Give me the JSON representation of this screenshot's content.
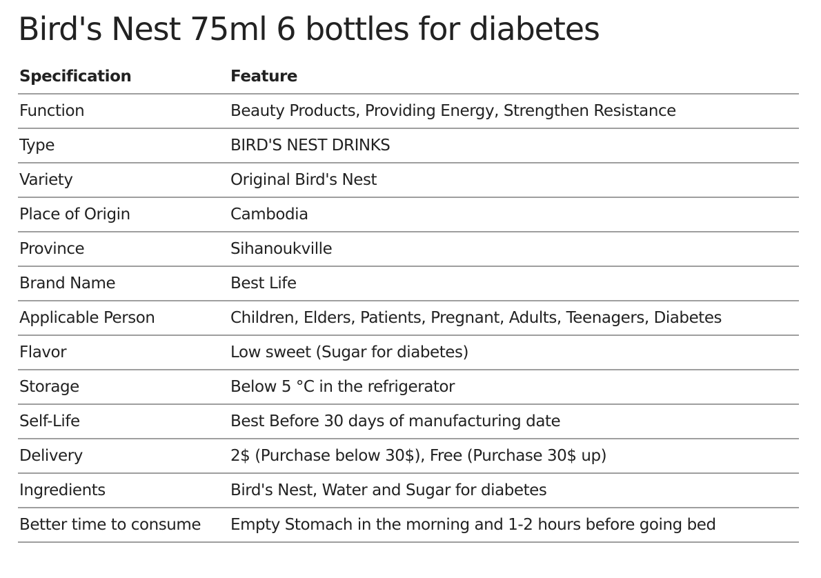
{
  "page": {
    "title": "Bird's Nest 75ml 6 bottles for diabetes"
  },
  "table": {
    "headers": [
      "Specification",
      "Feature"
    ],
    "rows": [
      [
        "Function",
        "Beauty Products, Providing Energy, Strengthen Resistance"
      ],
      [
        "Type",
        "BIRD'S NEST DRINKS"
      ],
      [
        "Variety",
        "Original Bird's Nest"
      ],
      [
        "Place of Origin",
        "Cambodia"
      ],
      [
        "Province",
        "Sihanoukville"
      ],
      [
        "Brand Name",
        "Best Life"
      ],
      [
        "Applicable Person",
        "Children, Elders, Patients, Pregnant, Adults, Teenagers, Diabetes"
      ],
      [
        "Flavor",
        "Low sweet (Sugar for diabetes)"
      ],
      [
        "Storage",
        "Below 5 °C in the refrigerator"
      ],
      [
        "Self-Life",
        "Best Before 30 days of manufacturing date"
      ],
      [
        "Delivery",
        "2$ (Purchase below 30$), Free (Purchase 30$ up)"
      ],
      [
        "Ingredients",
        "Bird's Nest, Water and Sugar for diabetes"
      ],
      [
        "Better time to consume",
        "Empty Stomach in the morning and 1-2 hours before going bed"
      ]
    ]
  }
}
